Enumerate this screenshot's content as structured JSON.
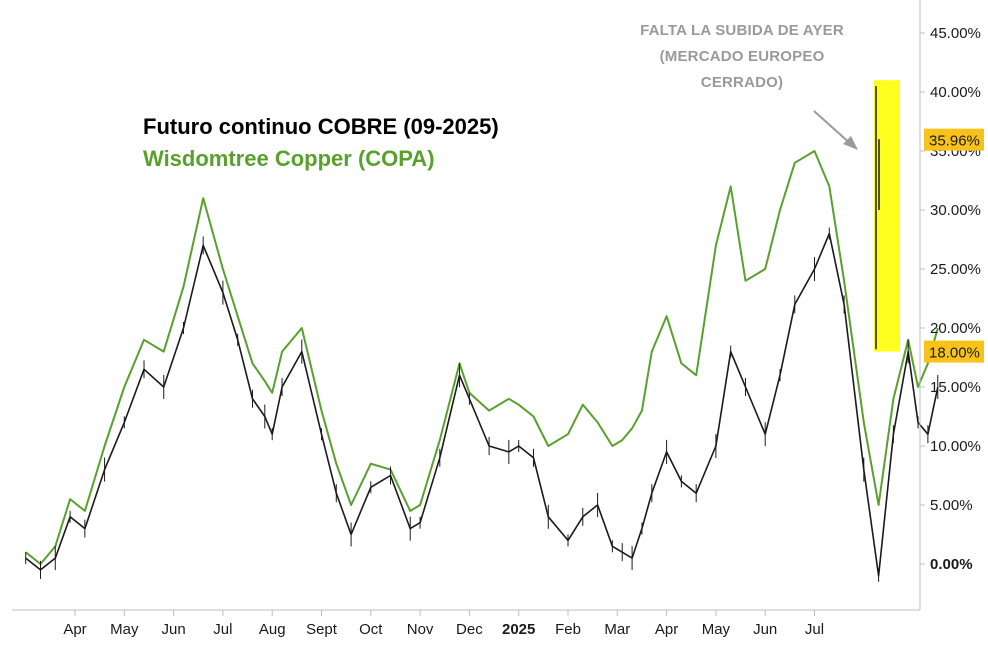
{
  "chart_data": {
    "type": "line",
    "title_lines": [
      "Futuro continuo COBRE (09-2025)",
      "Wisdomtree Copper (COPA)"
    ],
    "annotation": "FALTA LA SUBIDA DE AYER (MERCADO EUROPEO CERRADO)",
    "x_labels": [
      "Apr",
      "May",
      "Jun",
      "Jul",
      "Aug",
      "Sept",
      "Oct",
      "Nov",
      "Dec",
      "2025",
      "Feb",
      "Mar",
      "Apr",
      "May",
      "Jun",
      "Jul"
    ],
    "y_ticks": [
      0,
      5,
      10,
      15,
      20,
      25,
      30,
      35,
      40,
      45
    ],
    "y_tick_labels": [
      "0.00%",
      "5.00%",
      "10.00%",
      "15.00%",
      "20.00%",
      "25.00%",
      "30.00%",
      "35.00%",
      "40.00%",
      "45.00%"
    ],
    "ylim": [
      -4,
      47
    ],
    "value_badges": [
      {
        "label": "35.96%",
        "value": 35.96
      },
      {
        "label": "18.00%",
        "value": 18.0
      }
    ],
    "highlight": {
      "x_start": 18.5,
      "x_end": 19.0,
      "y_low": 18.0,
      "y_high": 41.0
    },
    "colors": {
      "futuro": "#1a1a1a",
      "copa": "#5aa02c",
      "badge": "#f7c31a",
      "highlight": "#ffff1f",
      "axis": "#bfbfbf",
      "annotation": "#9a9a9a"
    },
    "series": [
      {
        "name": "Futuro continuo COBRE (09-2025)",
        "x": [
          0,
          0.3,
          0.6,
          0.9,
          1.2,
          1.6,
          2.0,
          2.4,
          2.8,
          3.2,
          3.6,
          4.0,
          4.3,
          4.6,
          4.85,
          5.0,
          5.2,
          5.6,
          6.0,
          6.3,
          6.6,
          7.0,
          7.4,
          7.8,
          8.0,
          8.4,
          8.8,
          9.0,
          9.4,
          9.8,
          10.0,
          10.3,
          10.6,
          11.0,
          11.3,
          11.6,
          11.9,
          12.1,
          12.3,
          12.5,
          12.7,
          13.0,
          13.3,
          13.6,
          14.0,
          14.3,
          14.6,
          15.0,
          15.3,
          15.6,
          16.0,
          16.3,
          16.6,
          17.0,
          17.3,
          17.6,
          17.9,
          18.1,
          18.3,
          18.5
        ],
        "values": [
          0.5,
          -0.5,
          0.5,
          4.0,
          3.0,
          8.0,
          12.0,
          16.5,
          15.0,
          20.0,
          27.0,
          23.0,
          19.0,
          14.0,
          12.5,
          11.0,
          15.0,
          18.0,
          11.0,
          6.0,
          2.5,
          6.5,
          7.5,
          3.0,
          3.5,
          9.0,
          16.0,
          14.0,
          10.0,
          9.5,
          10.0,
          9.0,
          4.0,
          2.0,
          4.0,
          5.0,
          1.5,
          1.0,
          0.5,
          3.0,
          6.0,
          9.5,
          7.0,
          6.0,
          10.0,
          18.0,
          15.0,
          11.0,
          16.0,
          22.0,
          25.0,
          28.0,
          22.0,
          8.0,
          -1.0,
          11.0,
          18.0,
          12.0,
          11.0,
          15.0
        ]
      },
      {
        "name": "Wisdomtree Copper (COPA)",
        "x": [
          0,
          0.3,
          0.6,
          0.9,
          1.2,
          1.6,
          2.0,
          2.4,
          2.8,
          3.2,
          3.6,
          4.0,
          4.3,
          4.6,
          4.85,
          5.0,
          5.2,
          5.6,
          6.0,
          6.3,
          6.6,
          7.0,
          7.4,
          7.8,
          8.0,
          8.4,
          8.8,
          9.0,
          9.4,
          9.8,
          10.0,
          10.3,
          10.6,
          11.0,
          11.3,
          11.6,
          11.9,
          12.1,
          12.3,
          12.5,
          12.7,
          13.0,
          13.3,
          13.6,
          14.0,
          14.3,
          14.6,
          15.0,
          15.3,
          15.6,
          16.0,
          16.3,
          16.6,
          17.0,
          17.3,
          17.6,
          17.9,
          18.1,
          18.3,
          18.5
        ],
        "values": [
          1.0,
          0.0,
          1.5,
          5.5,
          4.5,
          10.0,
          15.0,
          19.0,
          18.0,
          23.5,
          31.0,
          25.0,
          21.0,
          17.0,
          15.5,
          14.5,
          18.0,
          20.0,
          13.0,
          8.5,
          5.0,
          8.5,
          8.0,
          4.5,
          5.0,
          10.5,
          17.0,
          14.5,
          13.0,
          14.0,
          13.5,
          12.5,
          10.0,
          11.0,
          13.5,
          12.0,
          10.0,
          10.5,
          11.5,
          13.0,
          18.0,
          21.0,
          17.0,
          16.0,
          27.0,
          32.0,
          24.0,
          25.0,
          30.0,
          34.0,
          35.0,
          32.0,
          24.0,
          12.0,
          5.0,
          14.0,
          19.0,
          15.0,
          17.0,
          20.0
        ]
      }
    ]
  }
}
